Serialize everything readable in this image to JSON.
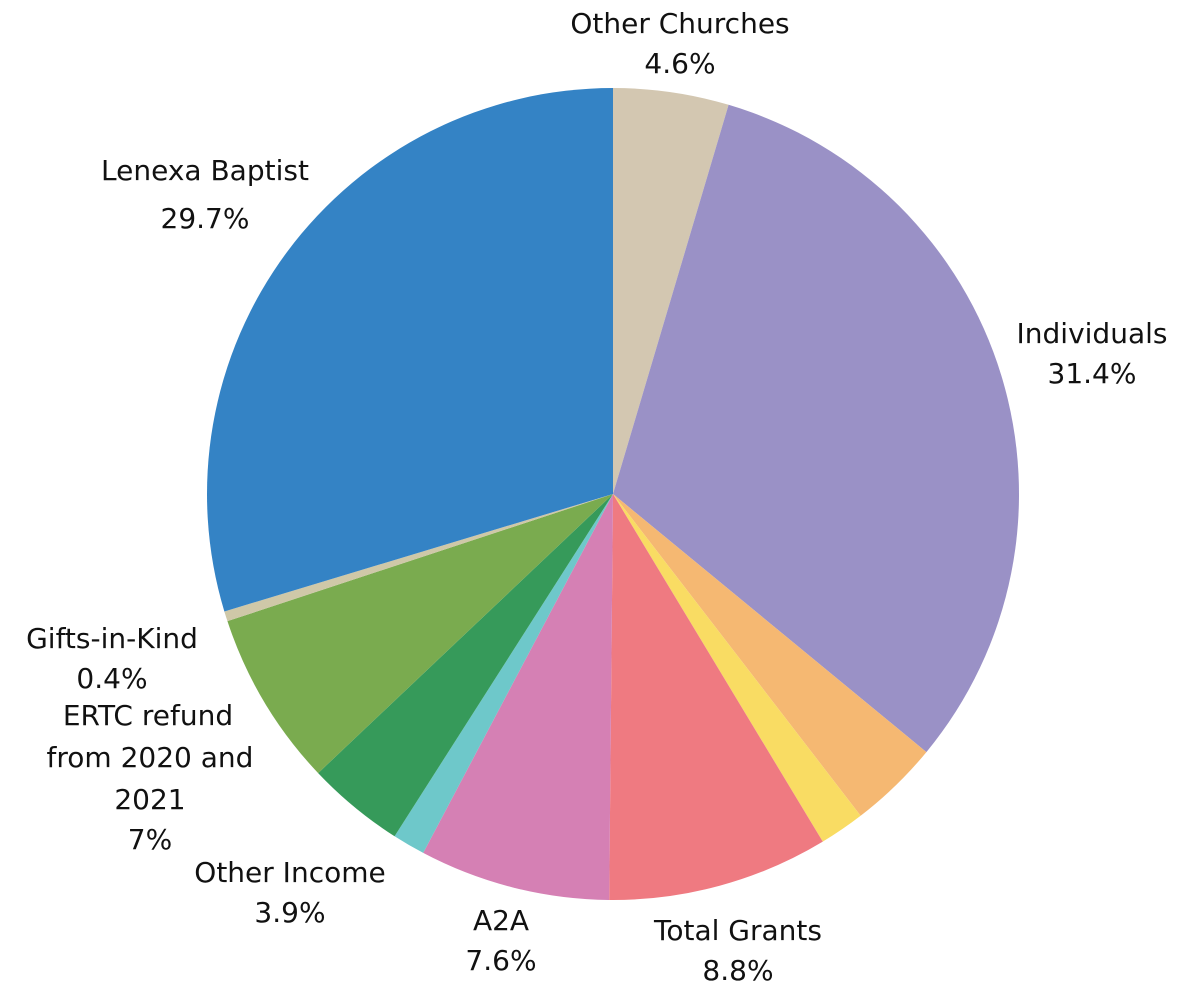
{
  "chart_data": {
    "type": "pie",
    "title": "",
    "start_angle_deg": 0,
    "direction": "clockwise",
    "slices": [
      {
        "label": "Other Churches",
        "value": 4.6,
        "value_label": "4.6%",
        "color": "#d3c7b1"
      },
      {
        "label": "Individuals",
        "value": 31.4,
        "value_label": "31.4%",
        "color": "#9a91c6"
      },
      {
        "label": "",
        "value": 3.6,
        "value_label": "",
        "color": "#f5b872"
      },
      {
        "label": "",
        "value": 1.8,
        "value_label": "",
        "color": "#f9dc63"
      },
      {
        "label": "Total Grants",
        "value": 8.8,
        "value_label": "8.8%",
        "color": "#ef7a81"
      },
      {
        "label": "A2A",
        "value": 7.6,
        "value_label": "7.6%",
        "color": "#d580b4"
      },
      {
        "label": "",
        "value": 1.3,
        "value_label": "",
        "color": "#6ec8ca"
      },
      {
        "label": "Other Income",
        "value": 3.9,
        "value_label": "3.9%",
        "color": "#369a5a"
      },
      {
        "label": "ERTC refund from 2020 and 2021",
        "value": 7,
        "value_label": "7%",
        "color": "#7aab4f"
      },
      {
        "label": "Gifts-in-Kind",
        "value": 0.4,
        "value_label": "0.4%",
        "color": "#cfc8a8"
      },
      {
        "label": "Lenexa Baptist",
        "value": 29.7,
        "value_label": "29.7%",
        "color": "#3483c5"
      }
    ]
  }
}
